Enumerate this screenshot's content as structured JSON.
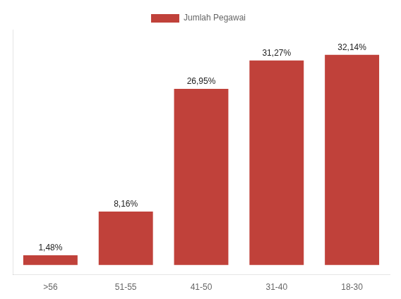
{
  "chart_data": {
    "type": "bar",
    "categories": [
      ">56",
      "51-55",
      "41-50",
      "31-40",
      "18-30"
    ],
    "series": [
      {
        "name": "Jumlah Pegawai",
        "color": "#c0413a",
        "values": [
          1.48,
          8.16,
          26.95,
          31.27,
          32.14
        ],
        "value_labels": [
          "1,48%",
          "8,16%",
          "26,95%",
          "31,27%",
          "32,14%"
        ]
      }
    ],
    "ylim": [
      -1.5,
      36
    ],
    "data_labels": true,
    "grid": false,
    "legend": "top",
    "tick_labels": "x"
  }
}
